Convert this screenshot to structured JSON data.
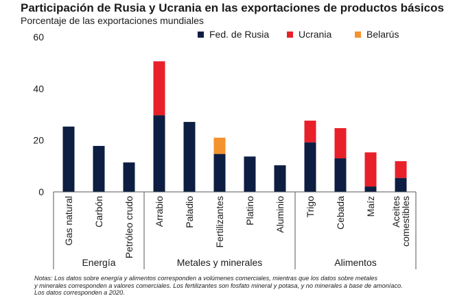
{
  "title": "Participación de Rusia y Ucrania en las exportaciones de productos básicos",
  "subtitle": "Porcentaje de las exportaciones mundiales",
  "colors": {
    "russia": "#0d1e42",
    "ukraine": "#e8202a",
    "belarus": "#f4922d",
    "axis": "#555555"
  },
  "chart_data": {
    "type": "bar",
    "stacked": true,
    "categories": [
      "Gas natural",
      "Carbón",
      "Petróleo crudo",
      "Arrabio",
      "Paladio",
      "Fertilizantes",
      "Platino",
      "Aluminio",
      "Trigo",
      "Cebada",
      "Maíz",
      "Aceites comestibles"
    ],
    "groups": [
      {
        "name": "Energía",
        "categories": [
          "Gas natural",
          "Carbón",
          "Petróleo crudo"
        ]
      },
      {
        "name": "Metales y minerales",
        "categories": [
          "Arrabio",
          "Paladio",
          "Fertilizantes",
          "Platino",
          "Aluminio"
        ]
      },
      {
        "name": "Alimentos",
        "categories": [
          "Trigo",
          "Cebada",
          "Maíz",
          "Aceites comestibles"
        ]
      }
    ],
    "series": [
      {
        "name": "Fed. de Rusia",
        "color": "#0d1e42",
        "values": [
          25.3,
          17.8,
          11.4,
          29.7,
          27.1,
          14.7,
          13.7,
          10.3,
          19.2,
          13.0,
          2.1,
          5.4
        ]
      },
      {
        "name": "Ucrania",
        "color": "#e8202a",
        "values": [
          0,
          0,
          0,
          20.9,
          0,
          0,
          0,
          0,
          8.4,
          11.7,
          13.2,
          6.5
        ]
      },
      {
        "name": "Belarús",
        "color": "#f4922d",
        "values": [
          0,
          0,
          0,
          0,
          0,
          6.3,
          0,
          0,
          0,
          0,
          0,
          0
        ]
      }
    ],
    "ylim": [
      0,
      60
    ],
    "yticks": [
      "0",
      "20",
      "40",
      "60"
    ],
    "xlabel": "",
    "ylabel": "",
    "grid": false,
    "legend_position": "top-right"
  },
  "notes": [
    "Notas: Los datos sobre energía y alimentos corresponden a volúmenes comerciales, mientras que los datos sobre metales",
    "y minerales corresponden a valores comerciales. Los fertilizantes son fosfato mineral y potasa, y no minerales a base de amoníaco.",
    "Los datos corresponden a 2020."
  ]
}
